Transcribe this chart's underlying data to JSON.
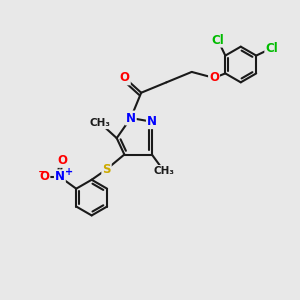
{
  "bg_color": "#e8e8e8",
  "bond_color": "#1a1a1a",
  "bond_width": 1.5,
  "atom_colors": {
    "N": "#0000ff",
    "O": "#ff0000",
    "S": "#ccaa00",
    "Cl": "#00bb00"
  },
  "font_size": 8.5,
  "figsize": [
    3.0,
    3.0
  ],
  "dpi": 100
}
